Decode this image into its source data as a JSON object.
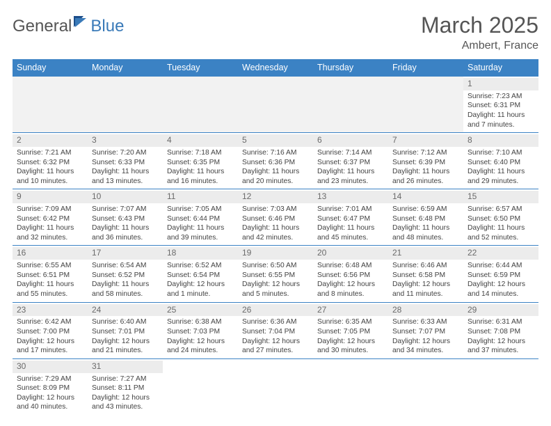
{
  "brand": {
    "part1": "General",
    "part2": "Blue"
  },
  "title": "March 2025",
  "subtitle": "Ambert, France",
  "colors": {
    "header_bg": "#3b82c4",
    "header_fg": "#ffffff",
    "border": "#3b82c4",
    "daynum_bg": "#ececec",
    "text": "#424242"
  },
  "weekdays": [
    "Sunday",
    "Monday",
    "Tuesday",
    "Wednesday",
    "Thursday",
    "Friday",
    "Saturday"
  ],
  "weeks": [
    [
      null,
      null,
      null,
      null,
      null,
      null,
      {
        "n": "1",
        "sr": "Sunrise: 7:23 AM",
        "ss": "Sunset: 6:31 PM",
        "d1": "Daylight: 11 hours",
        "d2": "and 7 minutes."
      }
    ],
    [
      {
        "n": "2",
        "sr": "Sunrise: 7:21 AM",
        "ss": "Sunset: 6:32 PM",
        "d1": "Daylight: 11 hours",
        "d2": "and 10 minutes."
      },
      {
        "n": "3",
        "sr": "Sunrise: 7:20 AM",
        "ss": "Sunset: 6:33 PM",
        "d1": "Daylight: 11 hours",
        "d2": "and 13 minutes."
      },
      {
        "n": "4",
        "sr": "Sunrise: 7:18 AM",
        "ss": "Sunset: 6:35 PM",
        "d1": "Daylight: 11 hours",
        "d2": "and 16 minutes."
      },
      {
        "n": "5",
        "sr": "Sunrise: 7:16 AM",
        "ss": "Sunset: 6:36 PM",
        "d1": "Daylight: 11 hours",
        "d2": "and 20 minutes."
      },
      {
        "n": "6",
        "sr": "Sunrise: 7:14 AM",
        "ss": "Sunset: 6:37 PM",
        "d1": "Daylight: 11 hours",
        "d2": "and 23 minutes."
      },
      {
        "n": "7",
        "sr": "Sunrise: 7:12 AM",
        "ss": "Sunset: 6:39 PM",
        "d1": "Daylight: 11 hours",
        "d2": "and 26 minutes."
      },
      {
        "n": "8",
        "sr": "Sunrise: 7:10 AM",
        "ss": "Sunset: 6:40 PM",
        "d1": "Daylight: 11 hours",
        "d2": "and 29 minutes."
      }
    ],
    [
      {
        "n": "9",
        "sr": "Sunrise: 7:09 AM",
        "ss": "Sunset: 6:42 PM",
        "d1": "Daylight: 11 hours",
        "d2": "and 32 minutes."
      },
      {
        "n": "10",
        "sr": "Sunrise: 7:07 AM",
        "ss": "Sunset: 6:43 PM",
        "d1": "Daylight: 11 hours",
        "d2": "and 36 minutes."
      },
      {
        "n": "11",
        "sr": "Sunrise: 7:05 AM",
        "ss": "Sunset: 6:44 PM",
        "d1": "Daylight: 11 hours",
        "d2": "and 39 minutes."
      },
      {
        "n": "12",
        "sr": "Sunrise: 7:03 AM",
        "ss": "Sunset: 6:46 PM",
        "d1": "Daylight: 11 hours",
        "d2": "and 42 minutes."
      },
      {
        "n": "13",
        "sr": "Sunrise: 7:01 AM",
        "ss": "Sunset: 6:47 PM",
        "d1": "Daylight: 11 hours",
        "d2": "and 45 minutes."
      },
      {
        "n": "14",
        "sr": "Sunrise: 6:59 AM",
        "ss": "Sunset: 6:48 PM",
        "d1": "Daylight: 11 hours",
        "d2": "and 48 minutes."
      },
      {
        "n": "15",
        "sr": "Sunrise: 6:57 AM",
        "ss": "Sunset: 6:50 PM",
        "d1": "Daylight: 11 hours",
        "d2": "and 52 minutes."
      }
    ],
    [
      {
        "n": "16",
        "sr": "Sunrise: 6:55 AM",
        "ss": "Sunset: 6:51 PM",
        "d1": "Daylight: 11 hours",
        "d2": "and 55 minutes."
      },
      {
        "n": "17",
        "sr": "Sunrise: 6:54 AM",
        "ss": "Sunset: 6:52 PM",
        "d1": "Daylight: 11 hours",
        "d2": "and 58 minutes."
      },
      {
        "n": "18",
        "sr": "Sunrise: 6:52 AM",
        "ss": "Sunset: 6:54 PM",
        "d1": "Daylight: 12 hours",
        "d2": "and 1 minute."
      },
      {
        "n": "19",
        "sr": "Sunrise: 6:50 AM",
        "ss": "Sunset: 6:55 PM",
        "d1": "Daylight: 12 hours",
        "d2": "and 5 minutes."
      },
      {
        "n": "20",
        "sr": "Sunrise: 6:48 AM",
        "ss": "Sunset: 6:56 PM",
        "d1": "Daylight: 12 hours",
        "d2": "and 8 minutes."
      },
      {
        "n": "21",
        "sr": "Sunrise: 6:46 AM",
        "ss": "Sunset: 6:58 PM",
        "d1": "Daylight: 12 hours",
        "d2": "and 11 minutes."
      },
      {
        "n": "22",
        "sr": "Sunrise: 6:44 AM",
        "ss": "Sunset: 6:59 PM",
        "d1": "Daylight: 12 hours",
        "d2": "and 14 minutes."
      }
    ],
    [
      {
        "n": "23",
        "sr": "Sunrise: 6:42 AM",
        "ss": "Sunset: 7:00 PM",
        "d1": "Daylight: 12 hours",
        "d2": "and 17 minutes."
      },
      {
        "n": "24",
        "sr": "Sunrise: 6:40 AM",
        "ss": "Sunset: 7:01 PM",
        "d1": "Daylight: 12 hours",
        "d2": "and 21 minutes."
      },
      {
        "n": "25",
        "sr": "Sunrise: 6:38 AM",
        "ss": "Sunset: 7:03 PM",
        "d1": "Daylight: 12 hours",
        "d2": "and 24 minutes."
      },
      {
        "n": "26",
        "sr": "Sunrise: 6:36 AM",
        "ss": "Sunset: 7:04 PM",
        "d1": "Daylight: 12 hours",
        "d2": "and 27 minutes."
      },
      {
        "n": "27",
        "sr": "Sunrise: 6:35 AM",
        "ss": "Sunset: 7:05 PM",
        "d1": "Daylight: 12 hours",
        "d2": "and 30 minutes."
      },
      {
        "n": "28",
        "sr": "Sunrise: 6:33 AM",
        "ss": "Sunset: 7:07 PM",
        "d1": "Daylight: 12 hours",
        "d2": "and 34 minutes."
      },
      {
        "n": "29",
        "sr": "Sunrise: 6:31 AM",
        "ss": "Sunset: 7:08 PM",
        "d1": "Daylight: 12 hours",
        "d2": "and 37 minutes."
      }
    ],
    [
      {
        "n": "30",
        "sr": "Sunrise: 7:29 AM",
        "ss": "Sunset: 8:09 PM",
        "d1": "Daylight: 12 hours",
        "d2": "and 40 minutes."
      },
      {
        "n": "31",
        "sr": "Sunrise: 7:27 AM",
        "ss": "Sunset: 8:11 PM",
        "d1": "Daylight: 12 hours",
        "d2": "and 43 minutes."
      },
      null,
      null,
      null,
      null,
      null
    ]
  ]
}
